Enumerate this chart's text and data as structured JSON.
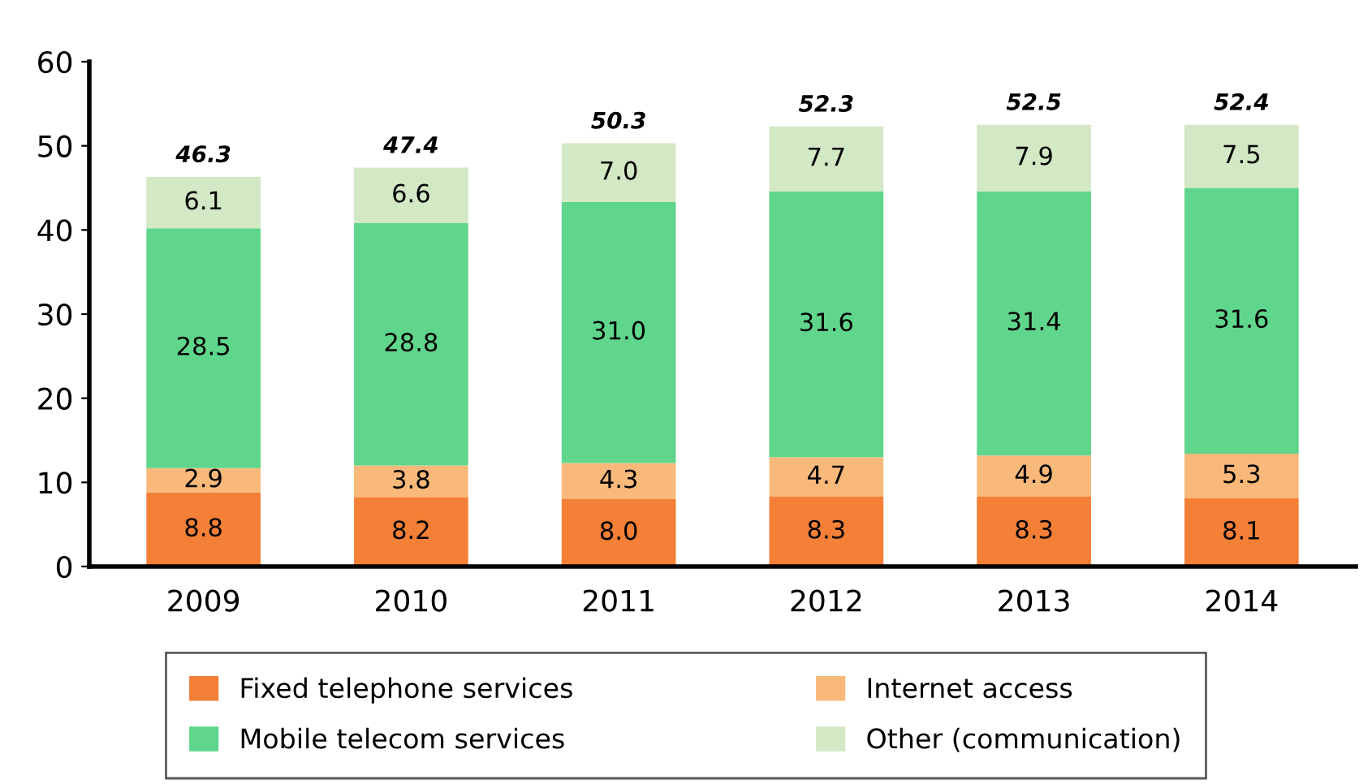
{
  "chart_data": {
    "type": "bar",
    "stacked": true,
    "categories": [
      "2009",
      "2010",
      "2011",
      "2012",
      "2013",
      "2014"
    ],
    "series": [
      {
        "name": "Fixed telephone services",
        "color": "#f47f36",
        "values": [
          8.8,
          8.2,
          8.0,
          8.3,
          8.3,
          8.1
        ],
        "value_labels": [
          "8.8",
          "8.2",
          "8.0",
          "8.3",
          "8.3",
          "8.1"
        ]
      },
      {
        "name": "Internet access",
        "color": "#f9b97a",
        "values": [
          2.9,
          3.8,
          4.3,
          4.7,
          4.9,
          5.3
        ],
        "value_labels": [
          "2.9",
          "3.8",
          "4.3",
          "4.7",
          "4.9",
          "5.3"
        ]
      },
      {
        "name": "Mobile telecom services",
        "color": "#5fd68b",
        "values": [
          28.5,
          28.8,
          31.0,
          31.6,
          31.4,
          31.6
        ],
        "value_labels": [
          "28.5",
          "28.8",
          "31.0",
          "31.6",
          "31.4",
          "31.6"
        ]
      },
      {
        "name": "Other (communication)",
        "color": "#d3e8c4",
        "values": [
          6.1,
          6.6,
          7.0,
          7.7,
          7.9,
          7.5
        ],
        "value_labels": [
          "6.1",
          "6.6",
          "7.0",
          "7.7",
          "7.9",
          "7.5"
        ]
      }
    ],
    "totals": [
      "46.3",
      "47.4",
      "50.3",
      "52.3",
      "52.5",
      "52.4"
    ],
    "ylim": [
      0,
      60
    ],
    "yticks": [
      0,
      10,
      20,
      30,
      40,
      50,
      60
    ],
    "grid": false,
    "legend": "bottom"
  }
}
